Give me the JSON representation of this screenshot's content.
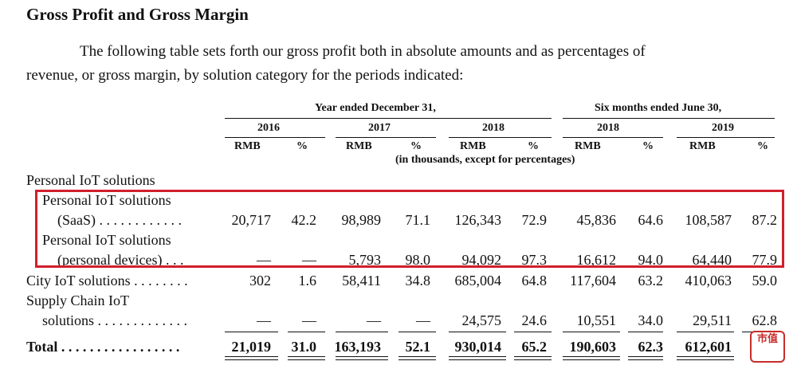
{
  "heading": "Gross Profit and Gross Margin",
  "intro": {
    "line1": "The following table sets forth our gross profit both in absolute amounts and as percentages of",
    "line2": "revenue, or gross margin, by solution category for the periods indicated:"
  },
  "table": {
    "period_groups": [
      "Year ended December 31,",
      "Six months ended June 30,"
    ],
    "years": [
      "2016",
      "2017",
      "2018",
      "2018",
      "2019"
    ],
    "col_rmb": "RMB",
    "col_pct": "%",
    "units_note": "(in thousands, except for percentages)",
    "section_label": "Personal IoT solutions",
    "rows": [
      {
        "label1": "Personal IoT solutions",
        "label2": "(SaaS)  . . . . . . . . . . . .",
        "values": [
          "20,717",
          "42.2",
          "98,989",
          "71.1",
          "126,343",
          "72.9",
          "45,836",
          "64.6",
          "108,587",
          "87.2"
        ]
      },
      {
        "label1": "Personal IoT solutions",
        "label2": "(personal devices)  . . .",
        "values": [
          "—",
          "—",
          "5,793",
          "98.0",
          "94,092",
          "97.3",
          "16,612",
          "94.0",
          "64,440",
          "77.9"
        ]
      },
      {
        "label1": "City IoT solutions  . . . . . . . .",
        "values": [
          "302",
          "1.6",
          "58,411",
          "34.8",
          "685,004",
          "64.8",
          "117,604",
          "63.2",
          "410,063",
          "59.0"
        ]
      },
      {
        "label1": "Supply Chain IoT",
        "label2": "solutions  . . . . . . . . . . . . .",
        "values": [
          "—",
          "—",
          "—",
          "—",
          "24,575",
          "24.6",
          "10,551",
          "34.0",
          "29,511",
          "62.8"
        ]
      },
      {
        "label1": "Total  . . . . . . . . . . . . . . . . .",
        "values": [
          "21,019",
          "31.0",
          "163,193",
          "52.1",
          "930,014",
          "65.2",
          "190,603",
          "62.3",
          "612,601",
          "—"
        ]
      }
    ]
  },
  "logo_text": "市值",
  "colors": {
    "highlight_box": "#d11f2c",
    "logo": "#c62d2b"
  }
}
